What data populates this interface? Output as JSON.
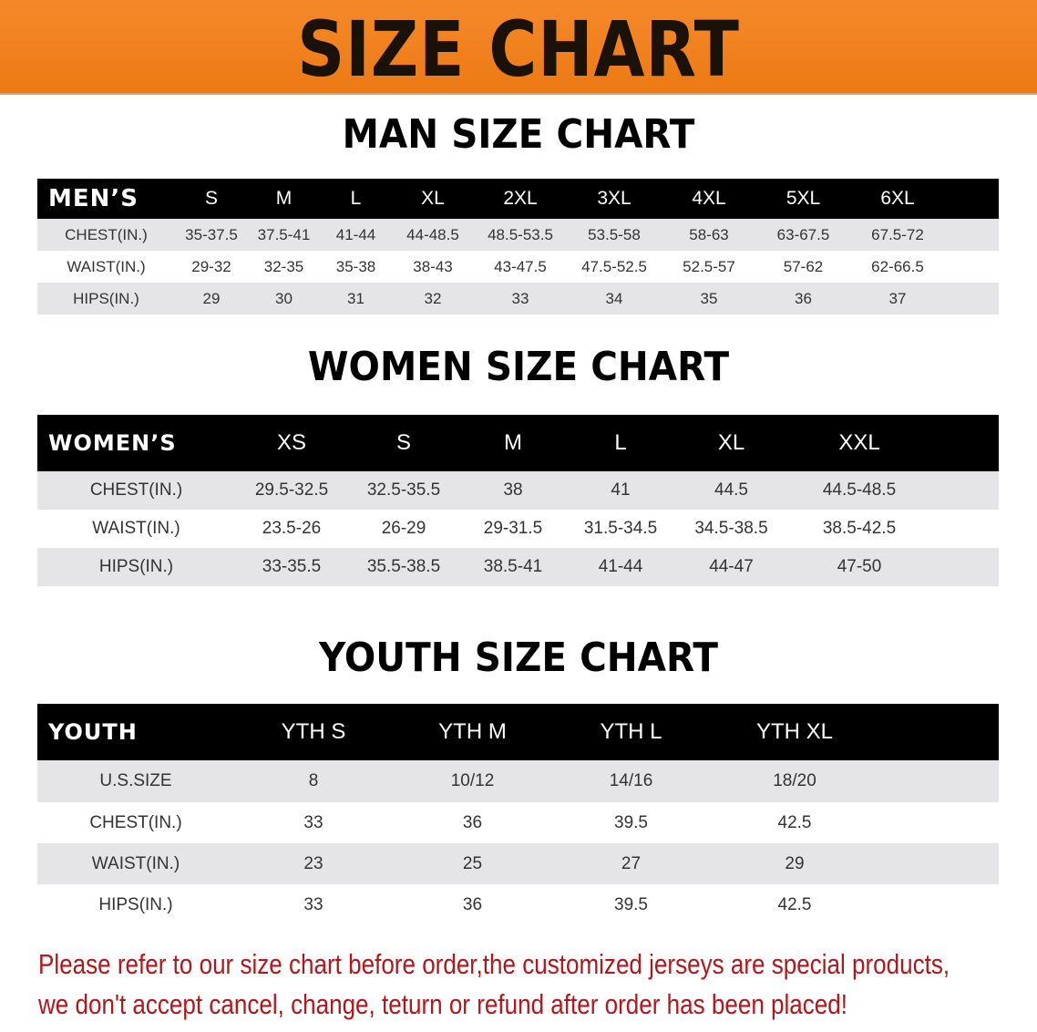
{
  "title": "SIZE CHART",
  "colors": {
    "banner": "#ef7f1a",
    "header": "#000000",
    "stripe": "#e5e5e7",
    "note": "#b3161b"
  },
  "men": {
    "section_title": "MAN SIZE CHART",
    "header": [
      "MEN’S",
      "S",
      "M",
      "L",
      "XL",
      "2XL",
      "3XL",
      "4XL",
      "5XL",
      "6XL"
    ],
    "rows": [
      [
        "CHEST(IN.)",
        "35-37.5",
        "37.5-41",
        "41-44",
        "44-48.5",
        "48.5-53.5",
        "53.5-58",
        "58-63",
        "63-67.5",
        "67.5-72"
      ],
      [
        "WAIST(IN.)",
        "29-32",
        "32-35",
        "35-38",
        "38-43",
        "43-47.5",
        "47.5-52.5",
        "52.5-57",
        "57-62",
        "62-66.5"
      ],
      [
        "HIPS(IN.)",
        "29",
        "30",
        "31",
        "32",
        "33",
        "34",
        "35",
        "36",
        "37"
      ]
    ]
  },
  "women": {
    "section_title": "WOMEN SIZE CHART",
    "header": [
      "WOMEN’S",
      "XS",
      "S",
      "M",
      "L",
      "XL",
      "XXL"
    ],
    "rows": [
      [
        "CHEST(IN.)",
        "29.5-32.5",
        "32.5-35.5",
        "38",
        "41",
        "44.5",
        "44.5-48.5"
      ],
      [
        "WAIST(IN.)",
        "23.5-26",
        "26-29",
        "29-31.5",
        "31.5-34.5",
        "34.5-38.5",
        "38.5-42.5"
      ],
      [
        "HIPS(IN.)",
        "33-35.5",
        "35.5-38.5",
        "38.5-41",
        "41-44",
        "44-47",
        "47-50"
      ]
    ]
  },
  "youth": {
    "section_title": "YOUTH SIZE CHART",
    "header": [
      "YOUTH",
      "YTH S",
      "YTH M",
      "YTH L",
      "YTH XL"
    ],
    "rows": [
      [
        "U.S.SIZE",
        "8",
        "10/12",
        "14/16",
        "18/20"
      ],
      [
        "CHEST(IN.)",
        "33",
        "36",
        "39.5",
        "42.5"
      ],
      [
        "WAIST(IN.)",
        "23",
        "25",
        "27",
        "29"
      ],
      [
        "HIPS(IN.)",
        "33",
        "36",
        "39.5",
        "42.5"
      ]
    ]
  },
  "note": {
    "line1": "Please refer to our size chart before order,the customized jerseys are special products,",
    "line2": "we don't accept cancel, change, teturn or refund after order has been placed!"
  }
}
